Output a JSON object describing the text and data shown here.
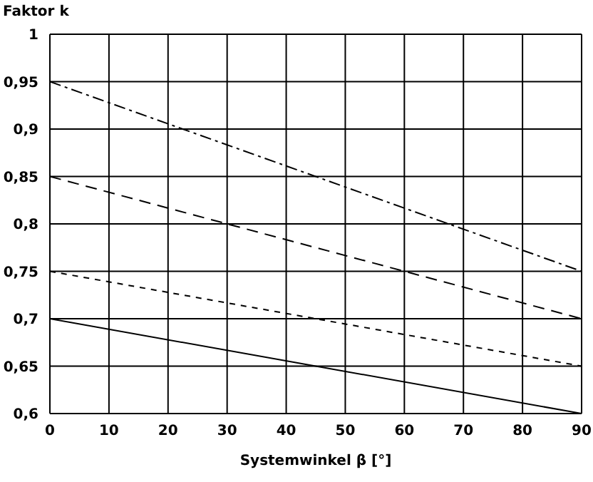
{
  "chart_data": {
    "type": "line",
    "xlabel": "Systemwinkel β [°]",
    "ylabel": "Faktor k",
    "x": [
      0,
      90
    ],
    "series": [
      {
        "color": "#000000",
        "values": [
          0.95,
          0.75
        ],
        "line_style": "dashdot"
      },
      {
        "color": "#000000",
        "values": [
          0.85,
          0.7
        ],
        "line_style": "longdash"
      },
      {
        "color": "#000000",
        "values": [
          0.75,
          0.65
        ],
        "line_style": "dashed"
      },
      {
        "color": "#000000",
        "values": [
          0.7,
          0.6
        ],
        "line_style": "solid"
      }
    ],
    "xlim": [
      0,
      90
    ],
    "xticks": [
      0,
      10,
      20,
      30,
      40,
      50,
      60,
      70,
      80,
      90
    ],
    "ylim": [
      0.6,
      1
    ],
    "yticks": [
      {
        "value": 0.6,
        "label": "0,6"
      },
      {
        "value": 0.65,
        "label": "0,65"
      },
      {
        "value": 0.7,
        "label": "0,7"
      },
      {
        "value": 0.75,
        "label": "0,75"
      },
      {
        "value": 0.8,
        "label": "0,8"
      },
      {
        "value": 0.85,
        "label": "0,85"
      },
      {
        "value": 0.9,
        "label": "0,9"
      },
      {
        "value": 0.95,
        "label": "0,95"
      },
      1
    ],
    "grid": true,
    "legend": false,
    "marker": "none"
  }
}
